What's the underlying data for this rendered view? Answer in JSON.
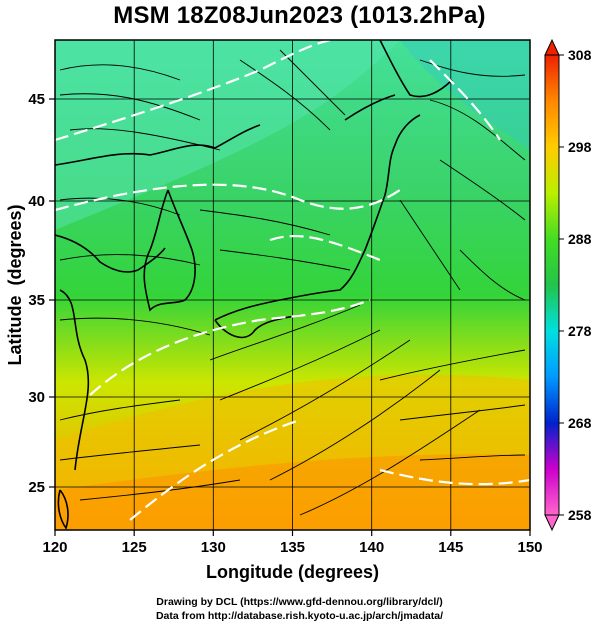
{
  "title": "MSM 18Z08Jun2023 (1013.2hPa)",
  "x_axis": {
    "label": "Longitude (degrees)",
    "range": [
      120,
      150
    ],
    "ticks": [
      "120",
      "125",
      "130",
      "135",
      "140",
      "145",
      "150"
    ]
  },
  "y_axis": {
    "label": "Latitude  (degrees)",
    "range": [
      22.5,
      47.5
    ],
    "ticks": [
      "25",
      "30",
      "35",
      "40",
      "45"
    ]
  },
  "colorbar": {
    "ticks": [
      "308",
      "298",
      "288",
      "278",
      "268",
      "258"
    ],
    "range": [
      258,
      308
    ],
    "colors": [
      "#ff66cc",
      "#cc00cc",
      "#0022cc",
      "#0099ff",
      "#00e0e0",
      "#22c44a",
      "#44dd22",
      "#bbee00",
      "#ffcc00",
      "#ff8800",
      "#ee2200"
    ]
  },
  "map": {
    "field_colors": {
      "north": "#44e09a",
      "middle": "#33d43a",
      "south": "#cce600",
      "far_south": "#ff9a00"
    },
    "streamline_color": "#000000",
    "contour_color": "#ffffff",
    "coast_color": "#000000"
  },
  "credits": {
    "line1": "Drawing by DCL (https://www.gfd-dennou.org/library/dcl/)",
    "line2": "Data from http://database.rish.kyoto-u.ac.jp/arch/jmadata/"
  }
}
